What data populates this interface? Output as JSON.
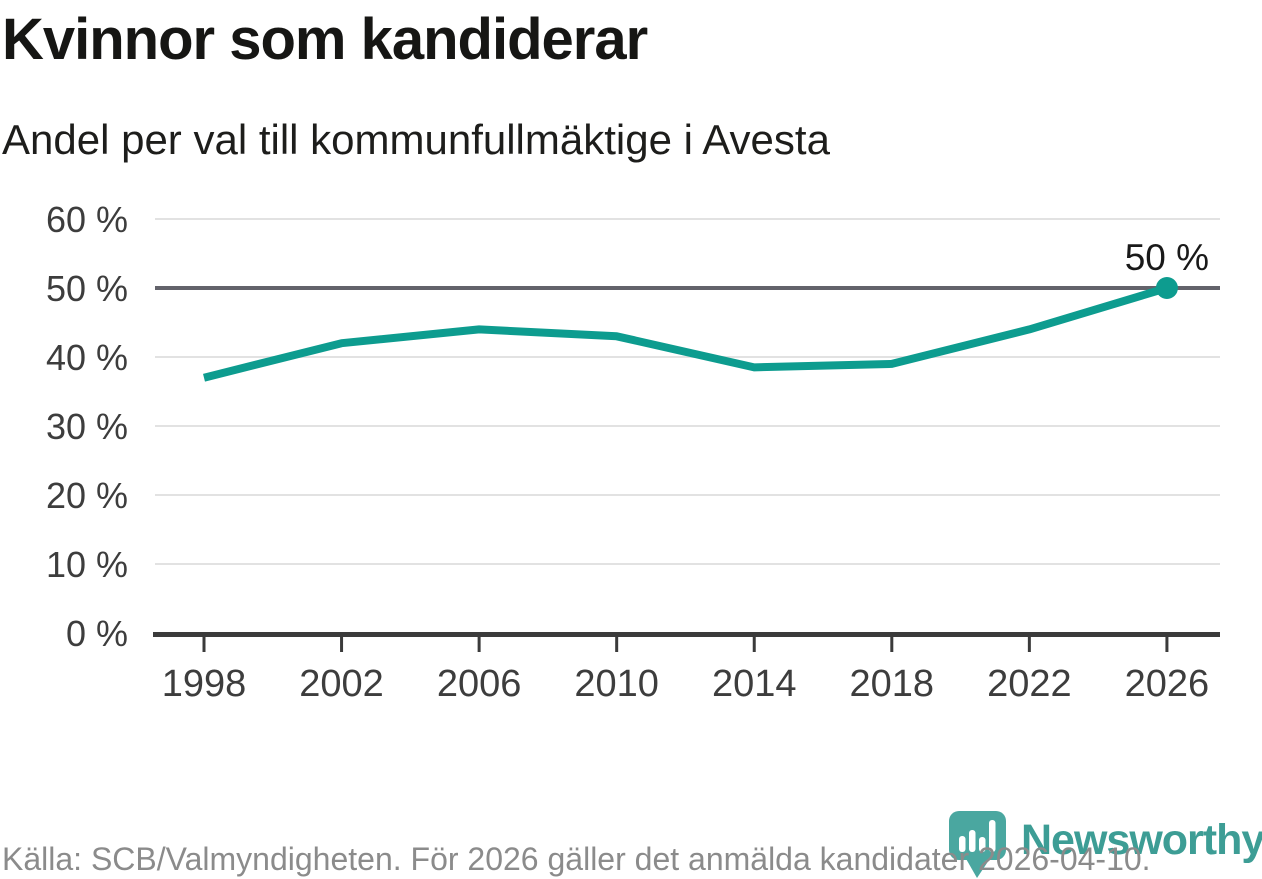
{
  "header": {
    "title": "Kvinnor som kandiderar",
    "subtitle": "Andel per val till kommunfullmäktige i Avesta"
  },
  "chart_data": {
    "type": "line",
    "title": "Kvinnor som kandiderar",
    "subtitle": "Andel per val till kommunfullmäktige i Avesta",
    "unit": "%",
    "x": [
      1998,
      2002,
      2006,
      2010,
      2014,
      2018,
      2022,
      2026
    ],
    "values": [
      37,
      42,
      44,
      43,
      38.5,
      39,
      44,
      50
    ],
    "xticks": [
      1998,
      2002,
      2006,
      2010,
      2014,
      2018,
      2022,
      2026
    ],
    "yticks": [
      0,
      10,
      20,
      30,
      40,
      50,
      60
    ],
    "ytick_suffix": " %",
    "ylim": [
      0,
      60
    ],
    "grid": true,
    "legend_position": "none",
    "highlight_gridline": 50,
    "end_label": "50 %",
    "line_color": "#0d9c8f",
    "marker_color": "#0d9c8f",
    "highlight_gridline_color": "#63636b",
    "gridline_color": "#e2e2e2",
    "axis_color": "#3b3b3b",
    "tick_label_color": "#3d3d3d",
    "end_label_color": "#191919"
  },
  "footer": {
    "source": "Källa: SCB/Valmyndigheten. För 2026 gäller det anmälda kandidater 2026-04-10."
  },
  "logo": {
    "brand": "Newsworthy",
    "icon": "speech-bubble-bar-chart",
    "bubble_color": "#4aa7a0",
    "text_color": "#3d9d95"
  }
}
